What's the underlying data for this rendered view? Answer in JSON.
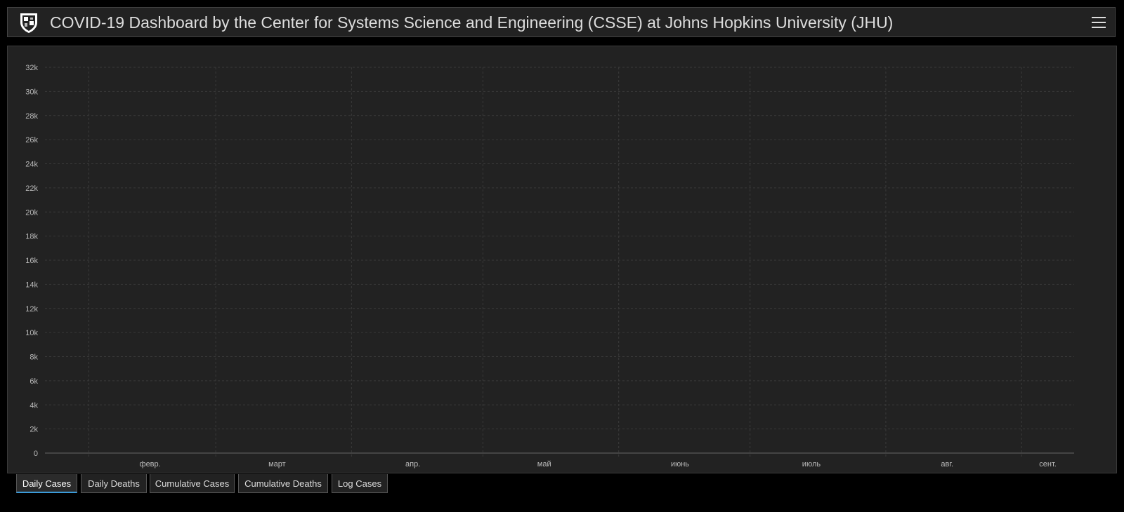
{
  "header": {
    "title": "COVID-19 Dashboard by the Center for Systems Science and Engineering (CSSE) at Johns Hopkins University (JHU)",
    "logo_icon": "shield-logo-icon",
    "menu_icon": "hamburger-menu-icon"
  },
  "tabs": [
    {
      "label": "Daily Cases",
      "active": true
    },
    {
      "label": "Daily Deaths",
      "active": false
    },
    {
      "label": "Cumulative Cases",
      "active": false
    },
    {
      "label": "Cumulative Deaths",
      "active": false
    },
    {
      "label": "Log Cases",
      "active": false
    }
  ],
  "colors": {
    "bar": "#ffaa00",
    "background": "#222222",
    "grid": "#3a3a3a",
    "text": "#bbbbbb"
  },
  "chart_data": {
    "type": "bar",
    "grid": true,
    "ylim": [
      0,
      32000
    ],
    "yticks": [
      0,
      2000,
      4000,
      6000,
      8000,
      10000,
      12000,
      14000,
      16000,
      18000,
      20000,
      22000,
      24000,
      26000,
      28000,
      30000,
      32000
    ],
    "ytick_labels": [
      "0",
      "2k",
      "4k",
      "6k",
      "8k",
      "10k",
      "12k",
      "14k",
      "16k",
      "18k",
      "20k",
      "22k",
      "24k",
      "26k",
      "28k",
      "30k",
      "32k"
    ],
    "x_start": "2020-01-22",
    "x_end": "2020-09-12",
    "month_ticks": [
      {
        "date": "2020-02-01",
        "label": ""
      },
      {
        "date": "2020-02-15",
        "label": "февр."
      },
      {
        "date": "2020-03-01",
        "label": ""
      },
      {
        "date": "2020-03-15",
        "label": "март"
      },
      {
        "date": "2020-04-01",
        "label": ""
      },
      {
        "date": "2020-04-15",
        "label": "апр."
      },
      {
        "date": "2020-05-01",
        "label": ""
      },
      {
        "date": "2020-05-15",
        "label": "май"
      },
      {
        "date": "2020-06-01",
        "label": ""
      },
      {
        "date": "2020-06-15",
        "label": "июнь"
      },
      {
        "date": "2020-07-01",
        "label": ""
      },
      {
        "date": "2020-07-15",
        "label": "июль"
      },
      {
        "date": "2020-08-01",
        "label": ""
      },
      {
        "date": "2020-08-15",
        "label": "авг."
      },
      {
        "date": "2020-09-01",
        "label": ""
      },
      {
        "date": "2020-09-07",
        "label": "сент."
      }
    ],
    "values": [
      0,
      0,
      0,
      0,
      0,
      0,
      0,
      0,
      0,
      0,
      0,
      0,
      0,
      0,
      0,
      0,
      0,
      0,
      0,
      0,
      0,
      0,
      0,
      0,
      0,
      0,
      0,
      0,
      0,
      0,
      0,
      0,
      0,
      0,
      0,
      0,
      0,
      0,
      0,
      0,
      0,
      0,
      0,
      0,
      0,
      0,
      0,
      0,
      0,
      0,
      0,
      0,
      0,
      0,
      0,
      0,
      0,
      0,
      0,
      0,
      0,
      0,
      0,
      0,
      0,
      0,
      0,
      0,
      0,
      0,
      0,
      0,
      0,
      0,
      0,
      0,
      0,
      0,
      0,
      0,
      0,
      0,
      0,
      0,
      0,
      0,
      0,
      0,
      0,
      0,
      0,
      0,
      0,
      0,
      0,
      0,
      0,
      0,
      0,
      0,
      0,
      0,
      0,
      0,
      0,
      0,
      0,
      0,
      0,
      0,
      0,
      0,
      0,
      0,
      0,
      0,
      0,
      0,
      0,
      0,
      0,
      0,
      0,
      0,
      0,
      0,
      0,
      0,
      0,
      0,
      0,
      0,
      0,
      0,
      0,
      0,
      0,
      0,
      0,
      0,
      0,
      0,
      0,
      0,
      0,
      0,
      0,
      0,
      0,
      0,
      0,
      0,
      0,
      0,
      0,
      0,
      0,
      0,
      0,
      0,
      0,
      0,
      0,
      0,
      0,
      0,
      0,
      0,
      0,
      0,
      0,
      0,
      0,
      0,
      0,
      0,
      0,
      0,
      0,
      0,
      0,
      0,
      0,
      0,
      0,
      0,
      0,
      0,
      0,
      0,
      0,
      0,
      0,
      0,
      0,
      0,
      0,
      0,
      0,
      0,
      0,
      0,
      0,
      0,
      0,
      0,
      0,
      0,
      0,
      0,
      0,
      0,
      0,
      0,
      0,
      0,
      0,
      0,
      0,
      0,
      0,
      0,
      0,
      0,
      0,
      0,
      0,
      0,
      0,
      0,
      0,
      0,
      0,
      0,
      0,
      0,
      0,
      0,
      0,
      0,
      0,
      0,
      0,
      0,
      0
    ]
  }
}
